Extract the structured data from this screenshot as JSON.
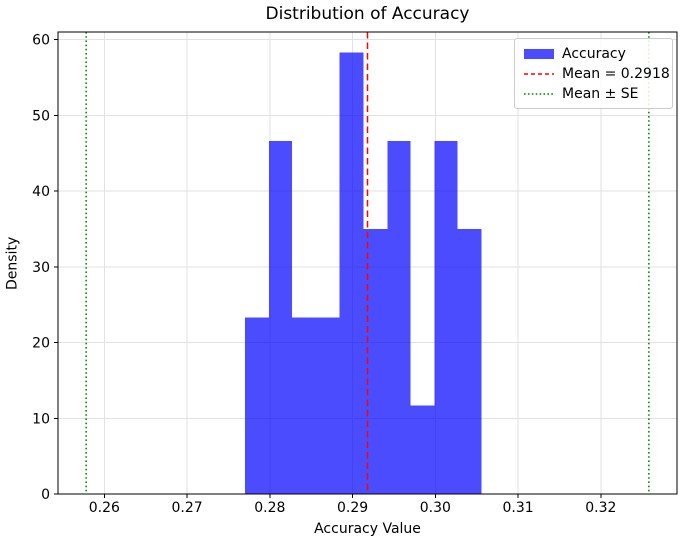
{
  "figure": {
    "kind": "matplotlib-histogram-figure"
  },
  "chart_data": {
    "type": "bar",
    "subtype": "histogram-density",
    "title": "Distribution of Accuracy",
    "xlabel": "Accuracy Value",
    "ylabel": "Density",
    "bin_edges": [
      0.277,
      0.2799,
      0.2827,
      0.2856,
      0.2884,
      0.2913,
      0.2942,
      0.297,
      0.2999,
      0.3027,
      0.3056
    ],
    "densities": [
      23.31,
      46.62,
      23.31,
      23.31,
      58.28,
      34.97,
      46.62,
      11.66,
      46.62,
      34.97
    ],
    "bar_color": "rgba(0,0,255,0.7)",
    "mean_line": {
      "x": 0.2918,
      "color": "#ff0000",
      "style": "dashed",
      "label": "Mean = 0.2918"
    },
    "se_lines": {
      "x": [
        0.2578,
        0.3258
      ],
      "color": "#008000",
      "style": "dotted",
      "label": "Mean ± SE"
    },
    "xlim": [
      0.2544,
      0.3292
    ],
    "ylim": [
      0,
      61.0
    ],
    "xtick_values": [
      0.26,
      0.27,
      0.28,
      0.29,
      0.3,
      0.31,
      0.32
    ],
    "xtick_labels": [
      "0.26",
      "0.27",
      "0.28",
      "0.29",
      "0.30",
      "0.31",
      "0.32"
    ],
    "ytick_values": [
      0,
      10,
      20,
      30,
      40,
      50,
      60
    ],
    "ytick_labels": [
      "0",
      "10",
      "20",
      "30",
      "40",
      "50",
      "60"
    ],
    "grid": true,
    "grid_color": "#e2e2e2",
    "spine_color": "#000000",
    "legend": {
      "position": "upper-right",
      "entries": [
        {
          "label": "Accuracy",
          "marker": "patch",
          "color": "rgba(0,0,255,0.7)"
        },
        {
          "label": "Mean = 0.2918",
          "marker": "dashed-line",
          "color": "#ff0000"
        },
        {
          "label": "Mean ± SE",
          "marker": "dotted-line",
          "color": "#008000"
        }
      ]
    }
  }
}
